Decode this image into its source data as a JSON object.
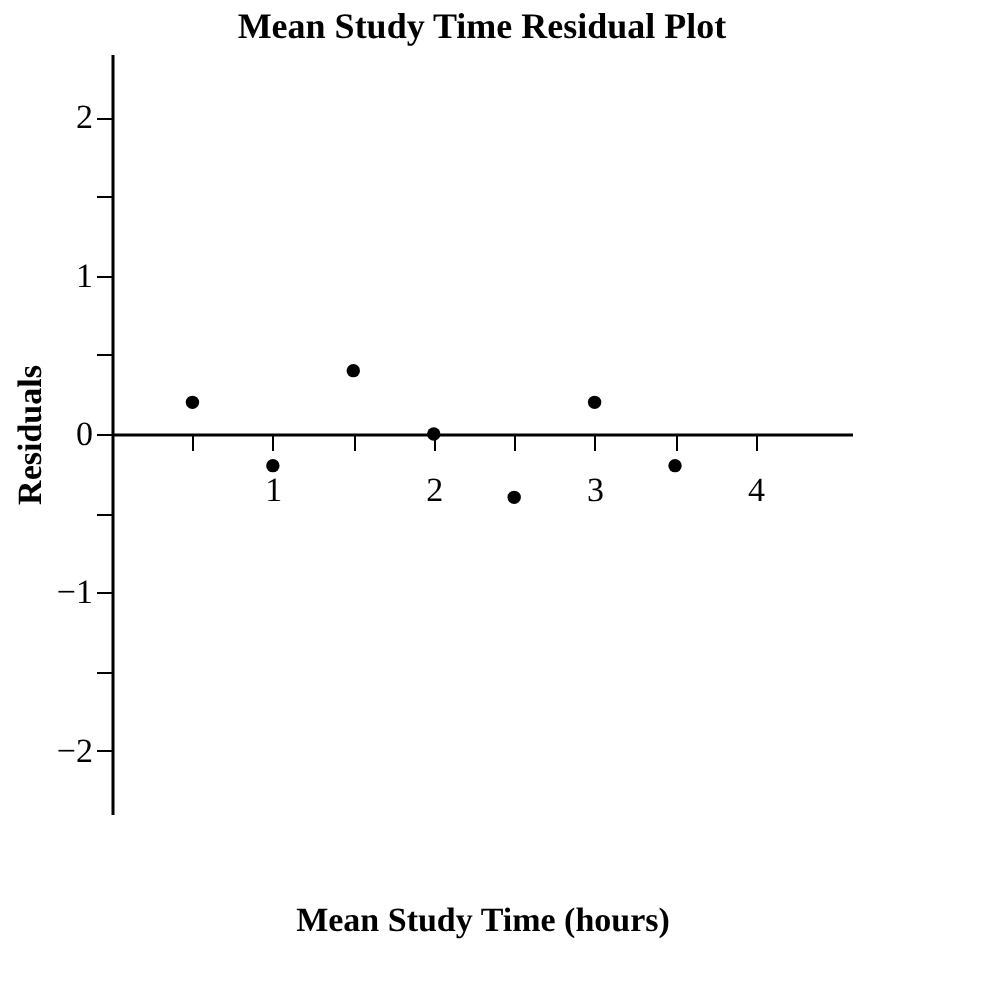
{
  "chart_data": {
    "type": "scatter",
    "title": "Mean Study Time Residual Plot",
    "xlabel": "Mean Study Time (hours)",
    "ylabel": "Residuals",
    "x": [
      0.5,
      1,
      1.5,
      2,
      2.5,
      3,
      3.5
    ],
    "series": [
      {
        "color": "#000000",
        "values": [
          0.2,
          -0.2,
          0.4,
          0,
          -0.4,
          0.2,
          -0.2
        ]
      }
    ],
    "xlim": [
      0,
      4.6
    ],
    "ylim": [
      -2.4,
      2.4
    ],
    "xticks": [
      {
        "value": 0.5,
        "label": null
      },
      1,
      {
        "value": 1.5,
        "label": null
      },
      2,
      {
        "value": 2.5,
        "label": null
      },
      3,
      {
        "value": 3.5,
        "label": null
      },
      4
    ],
    "yticks": [
      {
        "value": -2,
        "label": "−2"
      },
      {
        "value": -1.5,
        "label": null
      },
      {
        "value": -1,
        "label": "−1"
      },
      {
        "value": -0.5,
        "label": null
      },
      0,
      {
        "value": 0.5,
        "label": null
      },
      1,
      {
        "value": 1.5,
        "label": null
      },
      2
    ],
    "grid": false,
    "marker": "circle"
  }
}
